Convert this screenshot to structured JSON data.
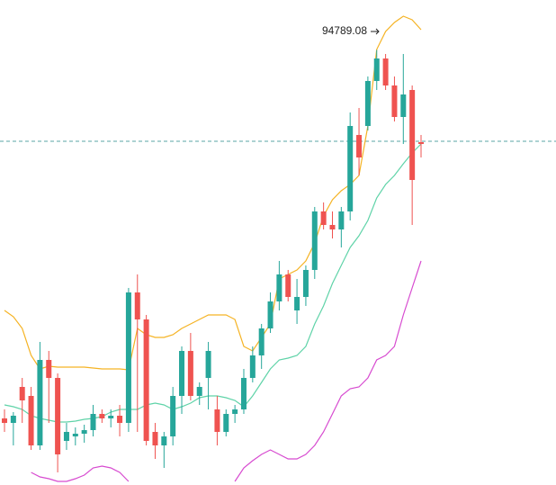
{
  "chart_data": {
    "type": "candlestick",
    "ylim": [
      85120,
      95900
    ],
    "up_color": "#26a69a",
    "down_color": "#ef5350",
    "open": [
      86600,
      86500,
      87300,
      87100,
      86000,
      87900,
      87500,
      86100,
      86200,
      86260,
      86340,
      86700,
      86600,
      86660,
      86500,
      89400,
      88800,
      86300,
      86000,
      86200,
      87100,
      88100,
      87100,
      87500,
      86800,
      86300,
      86700,
      86800,
      87500,
      88000,
      88600,
      89200,
      89800,
      89000,
      89300,
      89900,
      91200,
      90900,
      90800,
      91200,
      92900,
      93100,
      94100,
      94600,
      94000,
      93300,
      93900,
      92740
    ],
    "high": [
      86800,
      86740,
      87500,
      87300,
      88300,
      88100,
      87600,
      86500,
      86400,
      86460,
      86900,
      86800,
      86800,
      86900,
      89500,
      89800,
      88900,
      86500,
      86300,
      87300,
      88200,
      88500,
      87400,
      88300,
      87100,
      86800,
      86900,
      87700,
      88200,
      88700,
      89400,
      90100,
      89900,
      89700,
      90000,
      91300,
      91400,
      91200,
      91300,
      93400,
      93500,
      94200,
      94789.08,
      94700,
      94200,
      94700,
      94000,
      92900
    ],
    "low": [
      86300,
      86000,
      86500,
      85900,
      85900,
      86500,
      85400,
      85900,
      86000,
      86060,
      86200,
      86500,
      86400,
      86200,
      86300,
      86300,
      86000,
      85700,
      85500,
      86000,
      86700,
      87000,
      86900,
      86800,
      86000,
      86200,
      86500,
      86700,
      87400,
      87700,
      88500,
      89000,
      89200,
      88700,
      89100,
      89700,
      90800,
      90600,
      90400,
      91000,
      92000,
      93000,
      93900,
      93900,
      93200,
      92700,
      90900,
      92400
    ],
    "close": [
      86500,
      86660,
      87000,
      86000,
      87900,
      87500,
      85800,
      86300,
      86260,
      86340,
      86700,
      86600,
      86660,
      86500,
      89400,
      88800,
      86100,
      86000,
      86200,
      87100,
      88100,
      87100,
      87300,
      88100,
      86300,
      86700,
      86800,
      87500,
      88000,
      88600,
      89200,
      89800,
      89300,
      89300,
      89900,
      91200,
      90900,
      90800,
      91200,
      93100,
      92400,
      94100,
      94600,
      94000,
      93300,
      93800,
      91900,
      92700
    ],
    "bands": [
      {
        "color": "#f5b324",
        "values": [
          89000,
          88860,
          88600,
          88000,
          87700,
          87760,
          87740,
          87740,
          87740,
          87740,
          87720,
          87700,
          87700,
          87700,
          87680,
          88600,
          88460,
          88400,
          88400,
          88460,
          88600,
          88700,
          88800,
          88900,
          88900,
          88900,
          88800,
          88200,
          88100,
          88400,
          88700,
          89700,
          89800,
          89900,
          90100,
          90500,
          91100,
          91460,
          91660,
          91800,
          92000,
          93100,
          94800,
          95200,
          95400,
          95540,
          95460,
          95240
        ]
      },
      {
        "color": "#5fd3a8",
        "values": [
          86900,
          86860,
          86800,
          86660,
          86600,
          86560,
          86520,
          86520,
          86540,
          86580,
          86600,
          86640,
          86740,
          86800,
          86800,
          86800,
          86900,
          86940,
          86900,
          86800,
          86860,
          86940,
          87060,
          87100,
          87100,
          87060,
          87000,
          86860,
          87100,
          87400,
          87700,
          87900,
          87940,
          88000,
          88200,
          88700,
          89100,
          89600,
          90000,
          90400,
          90660,
          91000,
          91500,
          91800,
          92000,
          92260,
          92500,
          92700
        ]
      },
      {
        "color": "#d74bd0",
        "values": [
          null,
          null,
          null,
          85400,
          85300,
          85260,
          85200,
          85200,
          85260,
          85340,
          85500,
          85540,
          85500,
          85400,
          85200,
          null,
          null,
          null,
          null,
          null,
          null,
          null,
          null,
          null,
          null,
          null,
          85200,
          85500,
          85660,
          85800,
          85900,
          85800,
          85700,
          85700,
          85800,
          86000,
          86300,
          86700,
          87100,
          87260,
          87300,
          87500,
          87900,
          88000,
          88200,
          88900,
          89500,
          90100
        ]
      }
    ],
    "price_line": 92760,
    "price_line_color": "#5aa6a6"
  }
}
